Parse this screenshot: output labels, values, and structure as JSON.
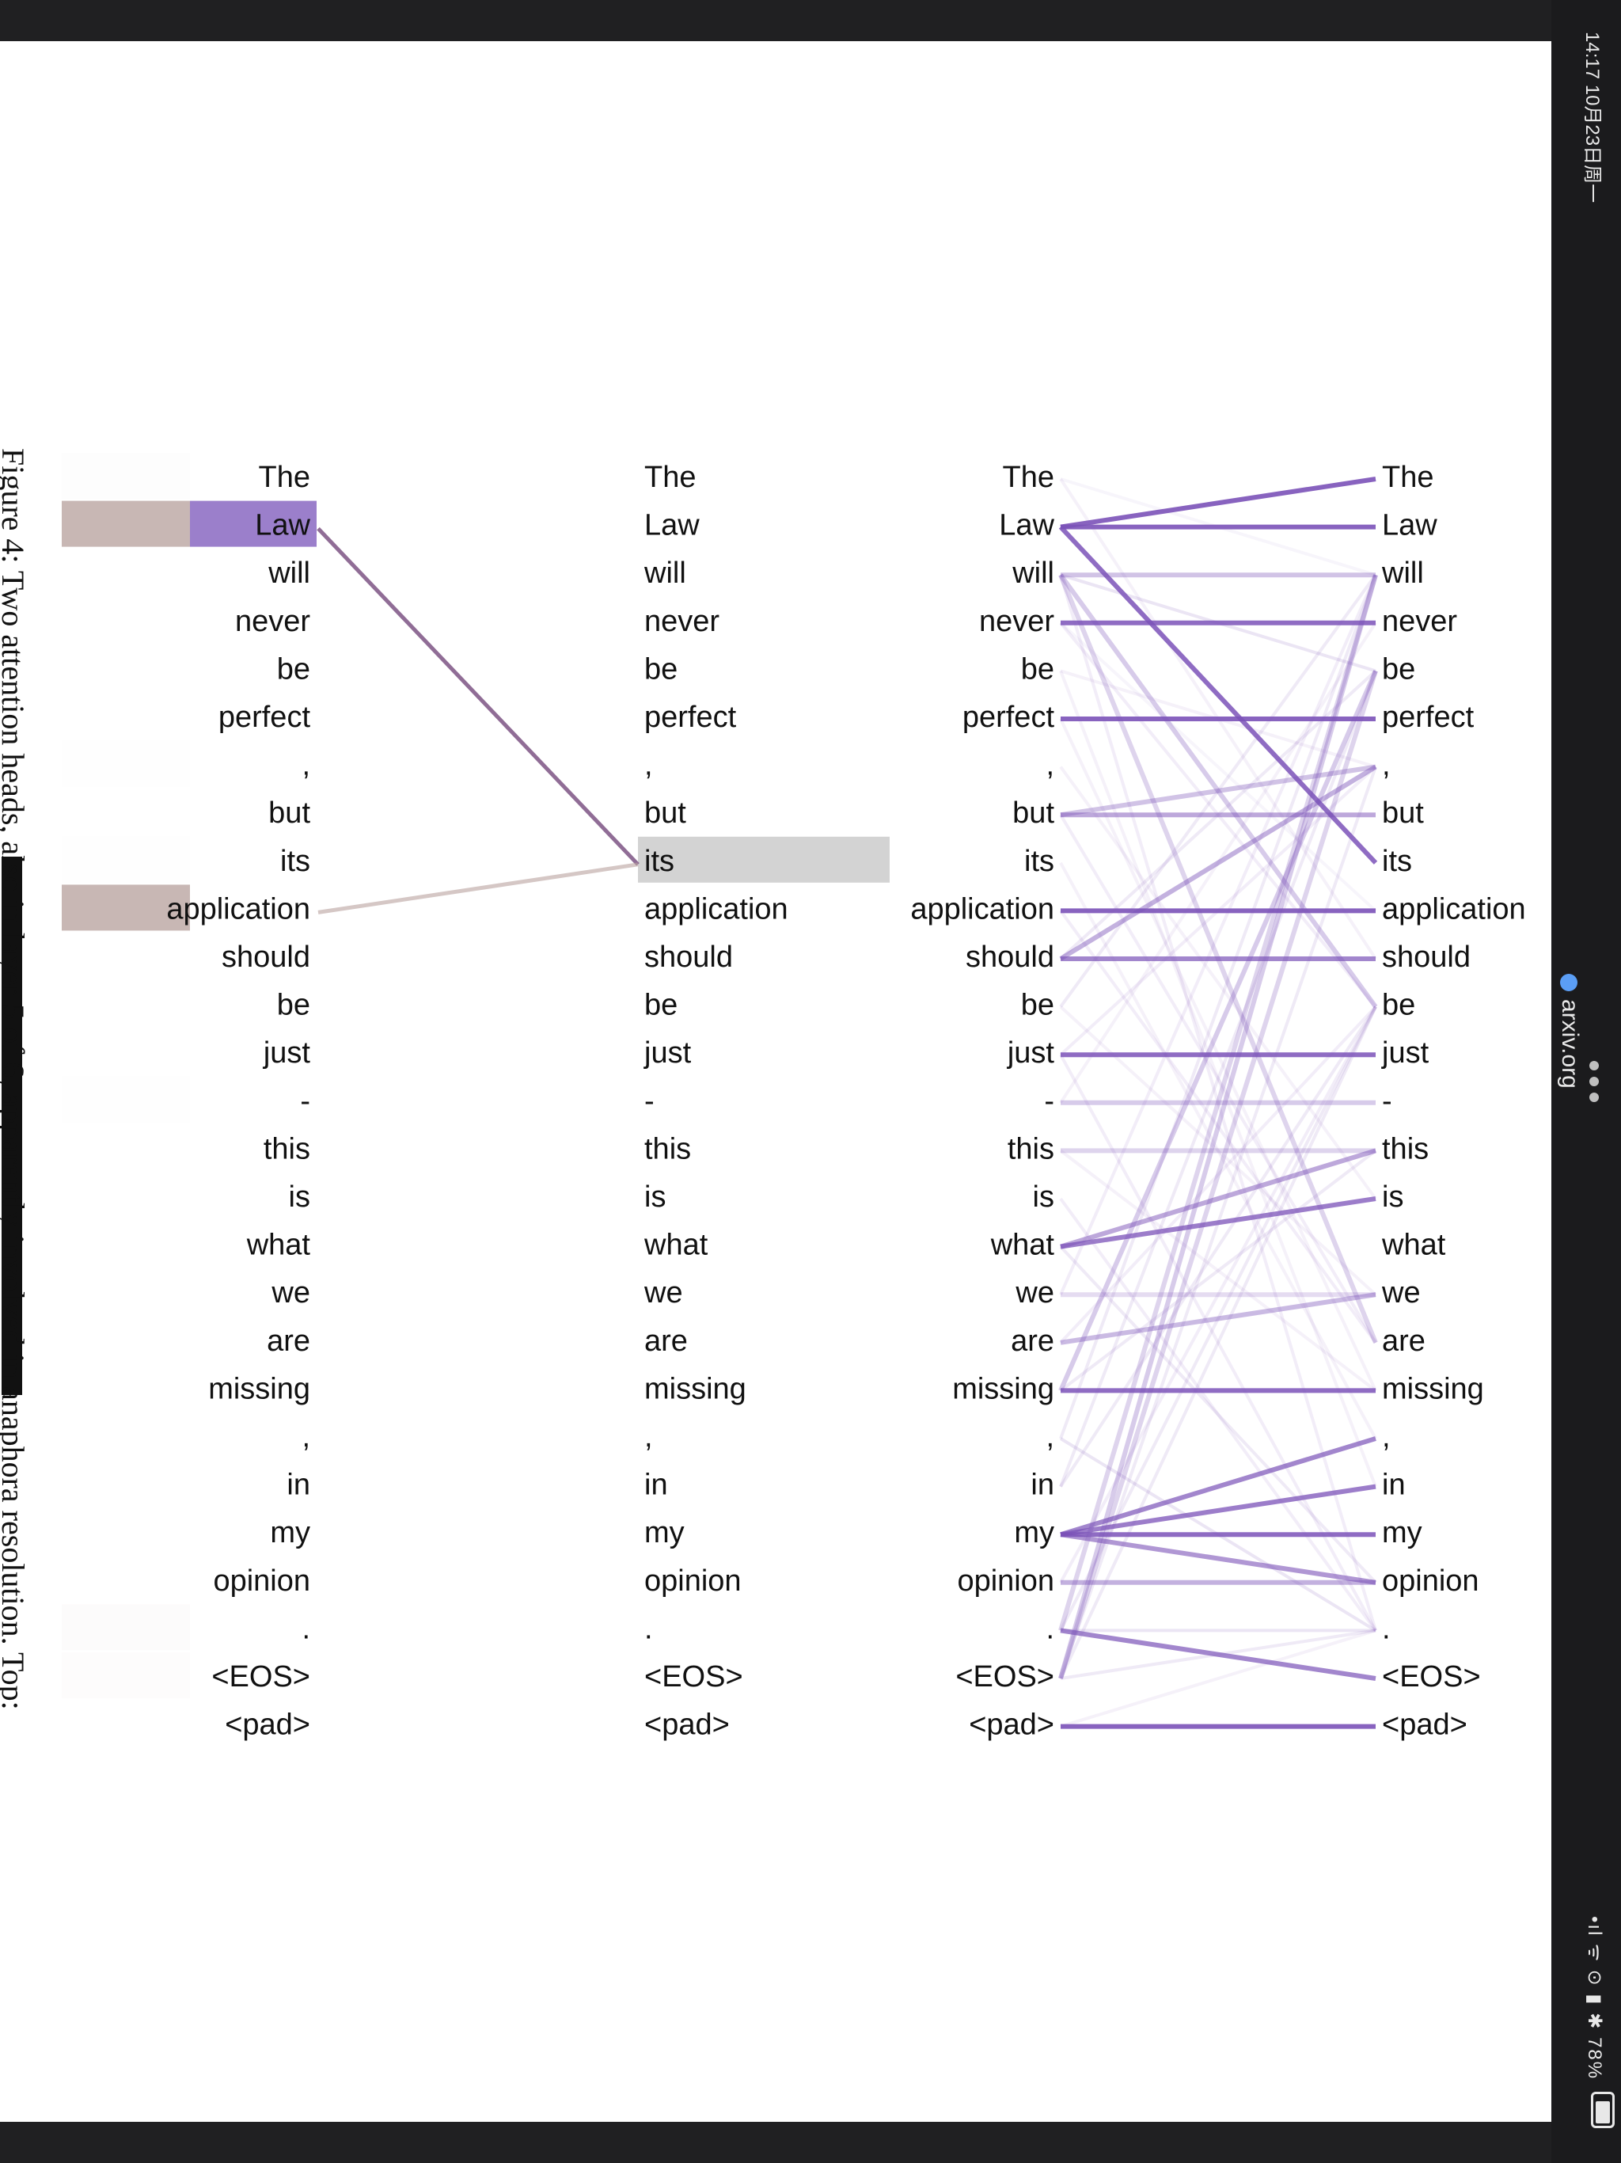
{
  "status": {
    "time_date": "14:17  10月23日周一",
    "url": "arxiv.org",
    "battery": "78%",
    "status_icons_text": "•ıl ᯤ ⊙ ▮ ✱ 78%"
  },
  "figure_caption": "Figure 4: Two attention heads, also in layer 5 of 6, apparently involved in anaphora resolution. Top:",
  "tokens": [
    "The",
    "Law",
    "will",
    "never",
    "be",
    "perfect",
    ",",
    "but",
    "its",
    "application",
    "should",
    "be",
    "just",
    "-",
    "this",
    "is",
    "what",
    "we",
    "are",
    "missing",
    ",",
    "in",
    "my",
    "opinion",
    ".",
    "<EOS>",
    "<pad>"
  ],
  "colors": {
    "purple": "#7b52b8",
    "brown": "#8a6b68",
    "highlight_purple": "#9b7fcb",
    "highlight_brown": "#c8b7b4",
    "query_gray": "#d3d3d3"
  },
  "left_panel": {
    "query_token_index": 8,
    "bars": [
      {
        "i": 0,
        "brown": 0.03,
        "purple": 0.0
      },
      {
        "i": 1,
        "brown": 1.0,
        "purple": 1.0
      },
      {
        "i": 6,
        "brown": 0.02,
        "purple": 0.0
      },
      {
        "i": 8,
        "brown": 0.02,
        "purple": 0.0
      },
      {
        "i": 9,
        "brown": 1.0,
        "purple": 0.0
      },
      {
        "i": 13,
        "brown": 0.02,
        "purple": 0.0
      },
      {
        "i": 24,
        "brown": 0.05,
        "purple": 0.0
      },
      {
        "i": 25,
        "brown": 0.04,
        "purple": 0.0
      }
    ],
    "links": [
      {
        "from": 1,
        "to": 8,
        "color": "purple_brown",
        "weight": 0.95
      },
      {
        "from": 9,
        "to": 8,
        "color": "brown",
        "weight": 0.6
      }
    ]
  },
  "right_panel": {
    "strong_links": [
      {
        "from": 1,
        "to": 0,
        "w": 0.9
      },
      {
        "from": 1,
        "to": 1,
        "w": 0.9
      },
      {
        "from": 1,
        "to": 8,
        "w": 0.85
      },
      {
        "from": 3,
        "to": 3,
        "w": 0.85
      },
      {
        "from": 5,
        "to": 5,
        "w": 0.9
      },
      {
        "from": 7,
        "to": 7,
        "w": 0.5
      },
      {
        "from": 9,
        "to": 9,
        "w": 0.9
      },
      {
        "from": 10,
        "to": 10,
        "w": 0.7
      },
      {
        "from": 12,
        "to": 12,
        "w": 0.85
      },
      {
        "from": 16,
        "to": 15,
        "w": 0.75
      },
      {
        "from": 16,
        "to": 14,
        "w": 0.5
      },
      {
        "from": 19,
        "to": 19,
        "w": 0.85
      },
      {
        "from": 22,
        "to": 21,
        "w": 0.75
      },
      {
        "from": 22,
        "to": 20,
        "w": 0.7
      },
      {
        "from": 22,
        "to": 22,
        "w": 0.85
      },
      {
        "from": 22,
        "to": 23,
        "w": 0.6
      },
      {
        "from": 24,
        "to": 25,
        "w": 0.7
      },
      {
        "from": 26,
        "to": 26,
        "w": 0.9
      },
      {
        "from": 18,
        "to": 17,
        "w": 0.4
      },
      {
        "from": 10,
        "to": 6,
        "w": 0.45
      },
      {
        "from": 7,
        "to": 6,
        "w": 0.35
      },
      {
        "from": 2,
        "to": 2,
        "w": 0.35
      },
      {
        "from": 13,
        "to": 13,
        "w": 0.3
      },
      {
        "from": 14,
        "to": 14,
        "w": 0.25
      },
      {
        "from": 23,
        "to": 23,
        "w": 0.45
      },
      {
        "from": 17,
        "to": 17,
        "w": 0.2
      },
      {
        "from": 2,
        "to": 11,
        "w": 0.3
      },
      {
        "from": 2,
        "to": 18,
        "w": 0.25
      },
      {
        "from": 19,
        "to": 4,
        "w": 0.3
      },
      {
        "from": 25,
        "to": 2,
        "w": 0.3
      },
      {
        "from": 25,
        "to": 4,
        "w": 0.25
      },
      {
        "from": 24,
        "to": 2,
        "w": 0.25
      }
    ],
    "faint_links": [
      {
        "from": 0,
        "to": 10,
        "w": 0.08
      },
      {
        "from": 2,
        "to": 4,
        "w": 0.15
      },
      {
        "from": 2,
        "to": 24,
        "w": 0.1
      },
      {
        "from": 3,
        "to": 11,
        "w": 0.1
      },
      {
        "from": 4,
        "to": 6,
        "w": 0.08
      },
      {
        "from": 5,
        "to": 19,
        "w": 0.08
      },
      {
        "from": 6,
        "to": 15,
        "w": 0.08
      },
      {
        "from": 8,
        "to": 20,
        "w": 0.08
      },
      {
        "from": 9,
        "to": 18,
        "w": 0.1
      },
      {
        "from": 10,
        "to": 4,
        "w": 0.12
      },
      {
        "from": 11,
        "to": 2,
        "w": 0.12
      },
      {
        "from": 12,
        "to": 24,
        "w": 0.1
      },
      {
        "from": 13,
        "to": 3,
        "w": 0.08
      },
      {
        "from": 14,
        "to": 19,
        "w": 0.08
      },
      {
        "from": 15,
        "to": 24,
        "w": 0.1
      },
      {
        "from": 16,
        "to": 23,
        "w": 0.12
      },
      {
        "from": 17,
        "to": 2,
        "w": 0.1
      },
      {
        "from": 18,
        "to": 11,
        "w": 0.1
      },
      {
        "from": 19,
        "to": 14,
        "w": 0.12
      },
      {
        "from": 20,
        "to": 2,
        "w": 0.12
      },
      {
        "from": 21,
        "to": 4,
        "w": 0.12
      },
      {
        "from": 23,
        "to": 11,
        "w": 0.1
      },
      {
        "from": 24,
        "to": 24,
        "w": 0.15
      },
      {
        "from": 25,
        "to": 6,
        "w": 0.12
      },
      {
        "from": 25,
        "to": 11,
        "w": 0.12
      },
      {
        "from": 25,
        "to": 24,
        "w": 0.12
      },
      {
        "from": 26,
        "to": 24,
        "w": 0.08
      },
      {
        "from": 20,
        "to": 24,
        "w": 0.15
      },
      {
        "from": 21,
        "to": 11,
        "w": 0.12
      },
      {
        "from": 24,
        "to": 11,
        "w": 0.12
      },
      {
        "from": 12,
        "to": 6,
        "w": 0.1
      },
      {
        "from": 7,
        "to": 18,
        "w": 0.1
      },
      {
        "from": 11,
        "to": 17,
        "w": 0.08
      },
      {
        "from": 4,
        "to": 21,
        "w": 0.08
      },
      {
        "from": 3,
        "to": 9,
        "w": 0.06
      },
      {
        "from": 0,
        "to": 2,
        "w": 0.06
      }
    ]
  }
}
